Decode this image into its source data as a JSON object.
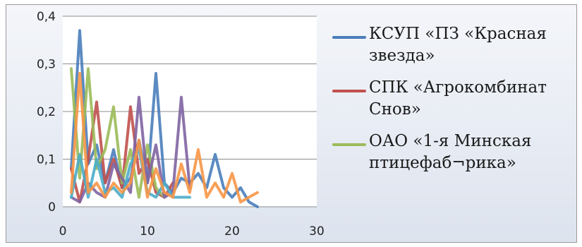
{
  "chart_data": {
    "type": "line",
    "xlim": [
      0,
      30
    ],
    "ylim": [
      0,
      0.4
    ],
    "x_ticks": [
      "0",
      "10",
      "20",
      "30"
    ],
    "y_ticks": [
      "0",
      "0,1",
      "0,2",
      "0,3",
      "0,4"
    ],
    "grid": "horizontal",
    "legend_position": "right",
    "series": [
      {
        "name": "КСУП «ПЗ «Красная звезда»",
        "color": "#4a7ebb",
        "x": [
          1,
          2,
          3,
          4,
          5,
          6,
          7,
          8,
          9,
          10,
          11,
          12,
          13,
          14,
          15,
          16,
          17,
          18,
          19,
          20,
          21,
          22,
          23
        ],
        "y": [
          0.08,
          0.37,
          0.09,
          0.13,
          0.05,
          0.12,
          0.04,
          0.06,
          0.14,
          0.05,
          0.28,
          0.05,
          0.03,
          0.06,
          0.05,
          0.07,
          0.04,
          0.11,
          0.04,
          0.02,
          0.04,
          0.01,
          0.0
        ]
      },
      {
        "name": "СПК «Агрокомбинат Снов»",
        "color": "#c0504d",
        "x": [
          1,
          2,
          3,
          4,
          5,
          6,
          7,
          8,
          9,
          10,
          11,
          12,
          13
        ],
        "y": [
          0.08,
          0.01,
          0.1,
          0.22,
          0.05,
          0.1,
          0.04,
          0.21,
          0.07,
          0.1,
          0.03,
          0.02,
          0.05
        ]
      },
      {
        "name": "ОАО «1-я Минская птицефаб¬рика»",
        "color": "#9bbb59",
        "x": [
          1,
          2,
          3,
          4,
          5,
          6,
          7,
          8,
          9,
          10,
          11,
          12
        ],
        "y": [
          0.29,
          0.06,
          0.29,
          0.08,
          0.12,
          0.21,
          0.05,
          0.12,
          0.02,
          0.13,
          0.04,
          0.02
        ]
      },
      {
        "color": "#8064a2",
        "x": [
          1,
          2,
          3,
          4,
          5,
          6,
          7,
          8,
          9,
          10,
          11,
          12,
          13,
          14,
          15
        ],
        "y": [
          0.02,
          0.01,
          0.05,
          0.03,
          0.02,
          0.09,
          0.06,
          0.03,
          0.23,
          0.05,
          0.13,
          0.02,
          0.03,
          0.23,
          0.04
        ]
      },
      {
        "color": "#4bacc6",
        "x": [
          1,
          2,
          3,
          4,
          5,
          6,
          7,
          8,
          9,
          10,
          11,
          12,
          13,
          14,
          15
        ],
        "y": [
          0.02,
          0.11,
          0.02,
          0.1,
          0.03,
          0.04,
          0.02,
          0.09,
          0.12,
          0.03,
          0.02,
          0.05,
          0.02,
          0.02,
          0.02
        ]
      },
      {
        "color": "#f79646",
        "x": [
          1,
          2,
          3,
          4,
          5,
          6,
          7,
          8,
          9,
          10,
          11,
          12,
          13,
          14,
          15,
          16,
          17,
          18,
          19,
          20,
          21,
          22,
          23
        ],
        "y": [
          0.03,
          0.28,
          0.03,
          0.05,
          0.02,
          0.05,
          0.03,
          0.05,
          0.14,
          0.02,
          0.08,
          0.03,
          0.02,
          0.09,
          0.03,
          0.12,
          0.02,
          0.05,
          0.02,
          0.07,
          0.01,
          0.02,
          0.03
        ]
      }
    ]
  }
}
